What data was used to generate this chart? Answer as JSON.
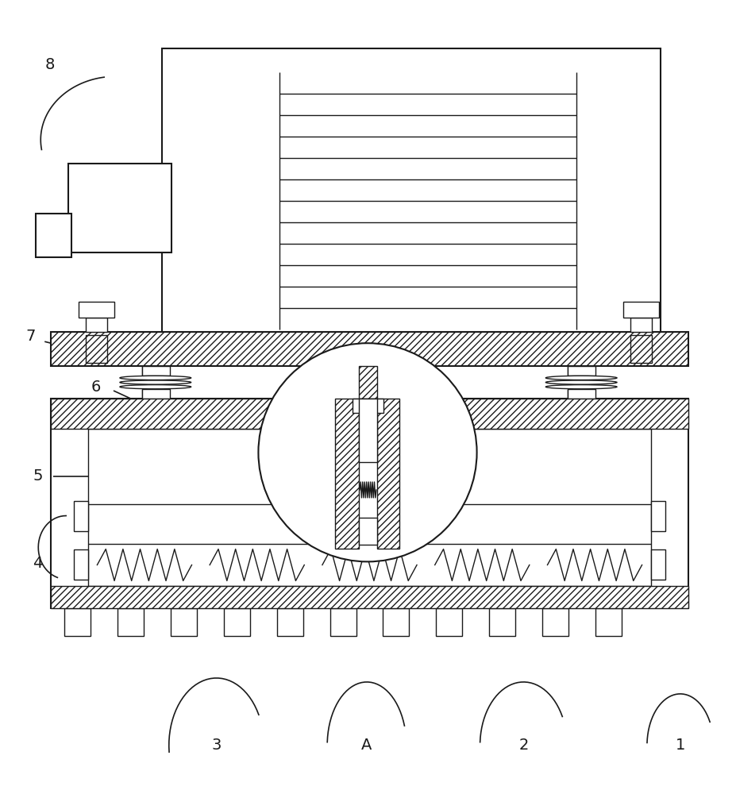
{
  "bg_color": "#ffffff",
  "line_color": "#1a1a1a",
  "lw": 1.5,
  "lw_thin": 1.0,
  "label_fontsize": 14,
  "fin_count": 11,
  "zigzag_count": 5,
  "tab_count": 11
}
